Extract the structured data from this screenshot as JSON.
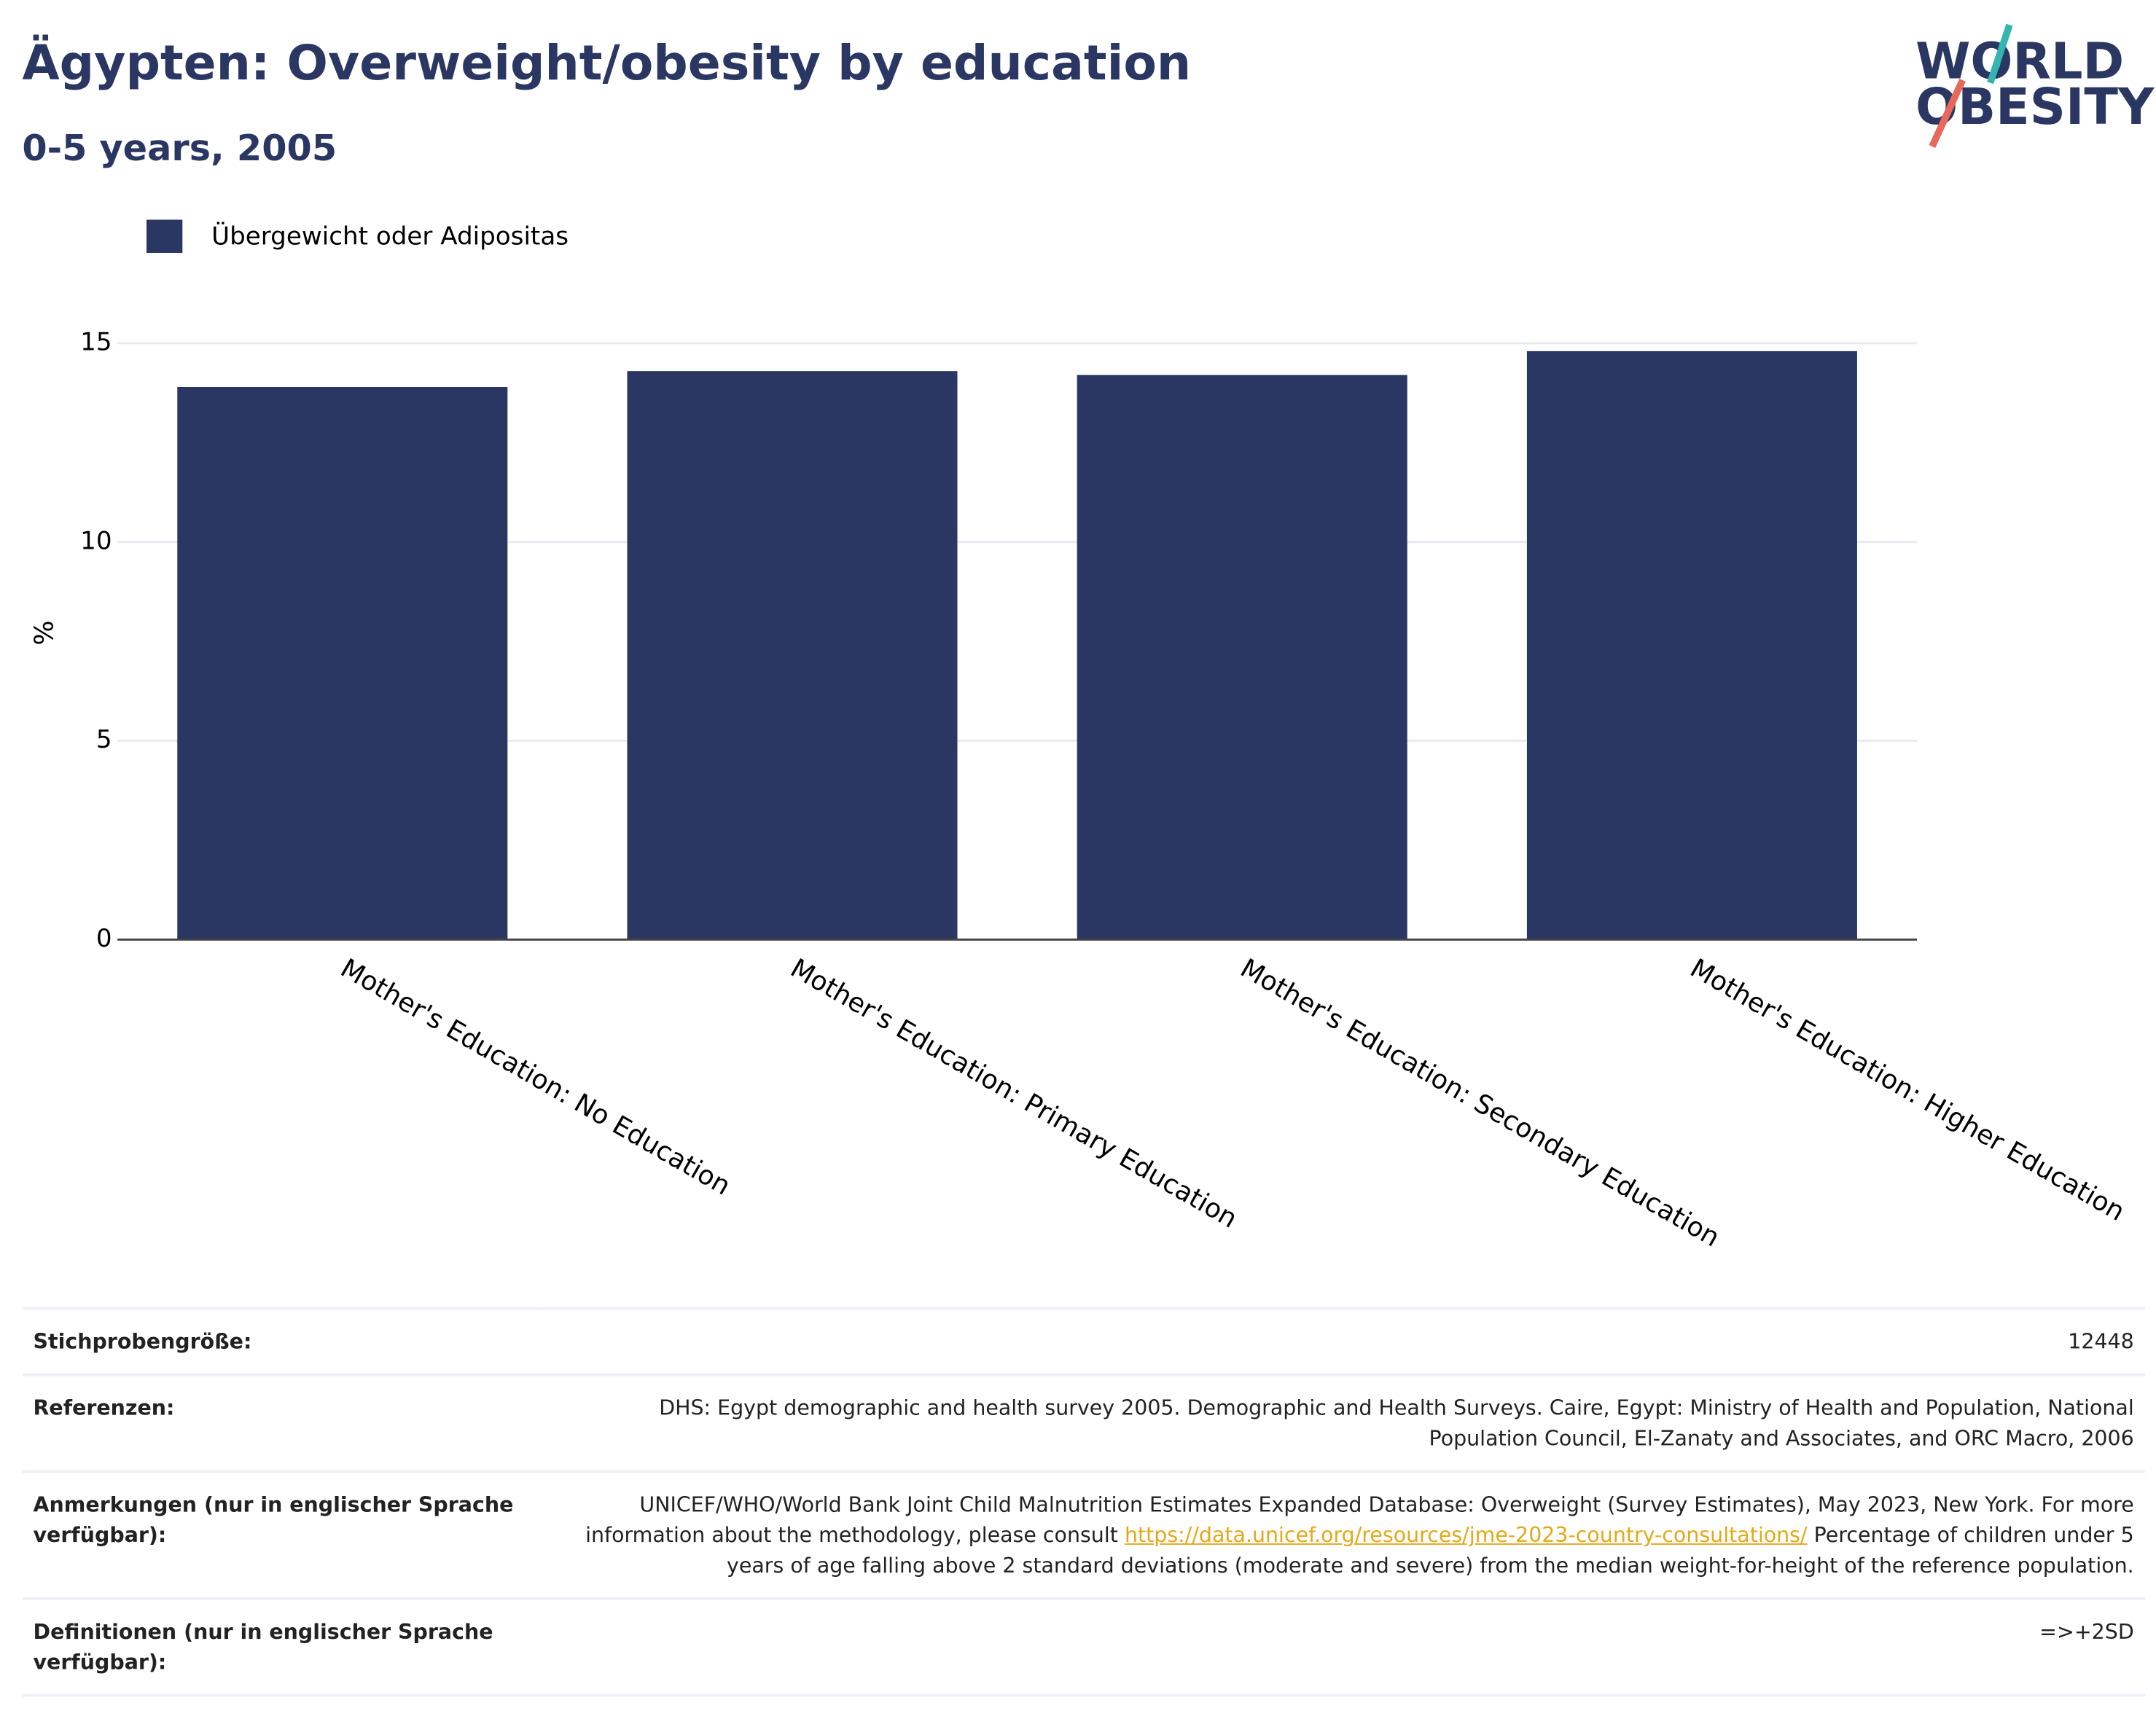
{
  "chart_data": {
    "type": "bar",
    "title": "Ägypten: Overweight/obesity by education",
    "subtitle": "0-5 years, 2005",
    "y_label": "%",
    "categories": [
      "Mother's Education: No Education",
      "Mother's Education: Primary Education",
      "Mother's Education: Secondary Education",
      "Mother's Education: Higher Education"
    ],
    "series": [
      {
        "name": "Übergewicht oder Adipositas",
        "color": "#2b3763",
        "values": [
          13.9,
          14.3,
          14.2,
          14.8
        ]
      }
    ],
    "ylim": [
      0,
      15.5
    ],
    "yticks": [
      0,
      5,
      10,
      15
    ],
    "grid": true,
    "legend": "top-left"
  },
  "logo": {
    "line1": "WORLD",
    "line2": "OBESITY"
  },
  "table": {
    "rows": [
      [
        "Stichprobengröße:",
        "12448"
      ],
      [
        "Referenzen:",
        "DHS: Egypt demographic and health survey 2005. Demographic and Health Surveys. Caire, Egypt: Ministry of Health and Population, National Population Council, El-Zanaty and Associates, and ORC Macro, 2006"
      ],
      [
        "Anmerkungen (nur in englischer Sprache verfügbar):",
        [
          "UNICEF/WHO/World Bank Joint Child Malnutrition Estimates Expanded Database: Overweight (Survey Estimates), May 2023, New York. For more information about the methodology, please consult ",
          "https://data.unicef.org/resources/jme-2023-country-consultations/",
          " Percentage of children under 5 years of age falling above 2 standard deviations (moderate and severe) from the median weight-for-height of the reference population."
        ]
      ],
      [
        "Definitionen (nur in englischer Sprache verfügbar):",
        "=>+2SD"
      ]
    ]
  }
}
